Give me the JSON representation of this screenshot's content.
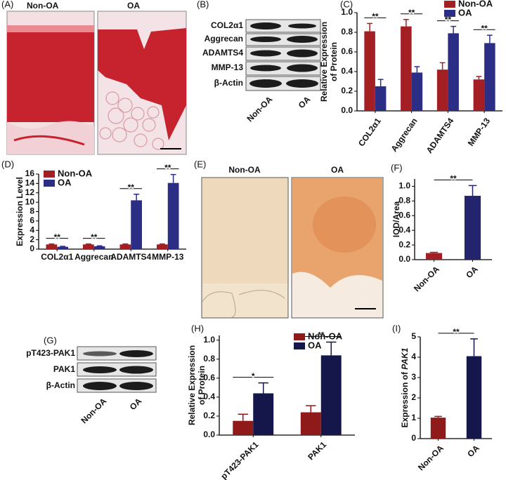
{
  "images": [
    {
      "label": "(A)",
      "titles": [
        "Non-OA",
        "OA"
      ]
    },
    {
      "label": "(E)",
      "titles": [
        "Non-OA",
        "OA"
      ]
    }
  ],
  "blots": [
    {
      "label": "(B)",
      "rows": [
        "COL2α1",
        "Aggrecan",
        "ADAMTS4",
        "MMP-13",
        "β-Actin"
      ],
      "lanes": [
        "Non-OA",
        "OA"
      ]
    },
    {
      "label": "(G)",
      "rows": [
        "pT423-PAK1",
        "PAK1",
        "β-Actin"
      ],
      "lanes": [
        "Non-OA",
        "OA"
      ]
    }
  ],
  "chart_data": [
    {
      "type": "bar",
      "label": "(C)",
      "ylabel": [
        "Relative Expression",
        "of Protein"
      ],
      "categories": [
        "COL2α1",
        "Aggrecan",
        "ADAMTS4",
        "MMP-13"
      ],
      "series": [
        {
          "name": "Non-OA",
          "color": "#a31f24",
          "values": [
            0.81,
            0.86,
            0.42,
            0.32
          ],
          "errors": [
            0.08,
            0.07,
            0.07,
            0.03
          ]
        },
        {
          "name": "OA",
          "color": "#2b2e84",
          "values": [
            0.25,
            0.39,
            0.79,
            0.69
          ],
          "errors": [
            0.07,
            0.06,
            0.07,
            0.08
          ]
        }
      ],
      "significance": [
        "**",
        "**",
        "**",
        "**"
      ],
      "ylim": [
        0,
        1.0
      ],
      "yticks": [
        {
          "value": 0,
          "label": "0.0"
        },
        0.2,
        0.4,
        0.6,
        0.8,
        {
          "value": 1,
          "label": "1.0"
        }
      ]
    },
    {
      "type": "bar",
      "label": "(D)",
      "ylabel": "Expression Level",
      "categories": [
        "COL2α1",
        "Aggrecan",
        "ADAMTS4",
        "MMP-13"
      ],
      "series": [
        {
          "name": "Non-OA",
          "color": "#a31f24",
          "values": [
            1.0,
            1.0,
            1.0,
            1.0
          ],
          "errors": [
            0.1,
            0.1,
            0.1,
            0.1
          ]
        },
        {
          "name": "OA",
          "color": "#2b2e84",
          "values": [
            0.5,
            0.6,
            10.4,
            14.1
          ],
          "errors": [
            0.1,
            0.1,
            1.3,
            1.8
          ]
        }
      ],
      "significance": [
        "**",
        "**",
        "**",
        "**"
      ],
      "ylim": [
        0,
        16
      ],
      "yticks": [
        0,
        2,
        4,
        6,
        8,
        10,
        12,
        14,
        16
      ]
    },
    {
      "type": "bar",
      "label": "(F)",
      "ylabel": "IOD/Area",
      "categories": [
        "Non-OA",
        "OA"
      ],
      "values": [
        0.09,
        0.87
      ],
      "errors": [
        0.01,
        0.14
      ],
      "colors": [
        "#a31f24",
        "#24246e"
      ],
      "significance": [
        "**"
      ],
      "ylim": [
        0,
        1.1
      ],
      "yticks": [
        {
          "value": 0,
          "label": "0.0"
        },
        0.2,
        0.4,
        0.6,
        0.8,
        {
          "value": 1,
          "label": "1.0"
        }
      ]
    },
    {
      "type": "bar",
      "label": "(H)",
      "ylabel": [
        "Relative Expression",
        "of Protein"
      ],
      "categories": [
        "pT423-PAK1",
        "PAK1"
      ],
      "series": [
        {
          "name": "Non-OA",
          "color": "#8e1a1a",
          "values": [
            0.15,
            0.24
          ],
          "errors": [
            0.07,
            0.07
          ]
        },
        {
          "name": "OA",
          "color": "#15164a",
          "values": [
            0.44,
            0.84
          ],
          "errors": [
            0.11,
            0.14
          ]
        }
      ],
      "significance": [
        "*",
        "**"
      ],
      "ylim": [
        0,
        1.05
      ],
      "yticks": [
        {
          "value": 0,
          "label": "0.0"
        },
        0.2,
        0.4,
        0.6,
        0.8,
        {
          "value": 1,
          "label": "1.0"
        }
      ]
    },
    {
      "type": "bar",
      "label": "(I)",
      "ylabel": "Expression of ",
      "ylabel_italic": "PAK1",
      "categories": [
        "Non-OA",
        "OA"
      ],
      "values": [
        1.03,
        4.05
      ],
      "errors": [
        0.06,
        0.85
      ],
      "colors": [
        "#8e1a1a",
        "#15164a"
      ],
      "significance": [
        "**"
      ],
      "ylim": [
        0,
        5
      ],
      "yticks": [
        0,
        1,
        2,
        3,
        4,
        5
      ]
    }
  ]
}
